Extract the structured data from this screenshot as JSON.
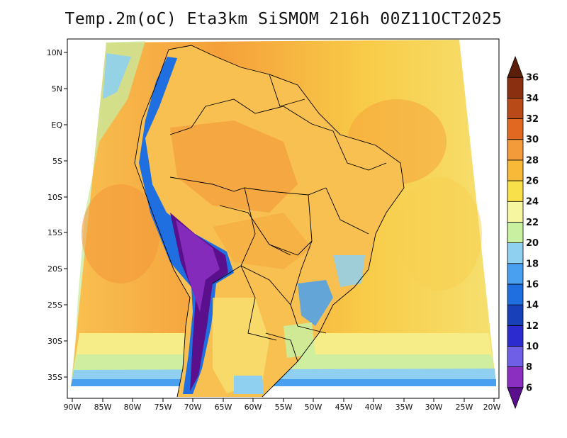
{
  "title": "Temp.2m(oC) Eta3km SiSMOM 216h 00Z11OCT2025",
  "map": {
    "lat_labels": [
      "10N",
      "5N",
      "EQ",
      "5S",
      "10S",
      "15S",
      "20S",
      "25S",
      "30S",
      "35S"
    ],
    "lon_labels": [
      "90W",
      "85W",
      "80W",
      "75W",
      "70W",
      "65W",
      "60W",
      "55W",
      "50W",
      "45W",
      "40W",
      "35W",
      "30W",
      "25W",
      "20W"
    ]
  },
  "colorbar": {
    "labels": [
      "6",
      "8",
      "10",
      "12",
      "14",
      "16",
      "18",
      "20",
      "22",
      "24",
      "26",
      "28",
      "30",
      "32",
      "34",
      "36"
    ],
    "colors": [
      "#5a0f8c",
      "#8a2fc0",
      "#6f5fe6",
      "#2b2bd0",
      "#1840b8",
      "#1f6fe0",
      "#4aa0f0",
      "#8fd0f0",
      "#c9f0a0",
      "#f6f6a0",
      "#f8e04a",
      "#f8b838",
      "#f39a3a",
      "#e06820",
      "#b84a18",
      "#8a3010",
      "#5a1e0a"
    ]
  }
}
